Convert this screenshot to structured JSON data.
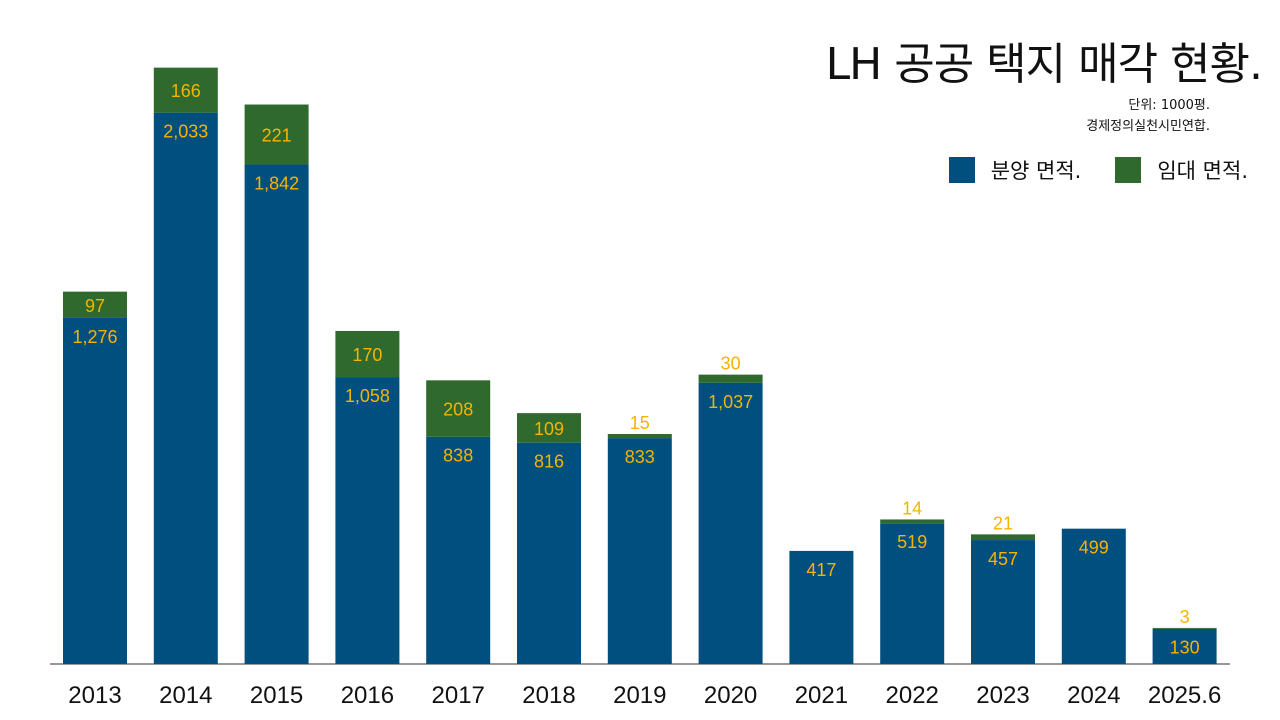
{
  "chart_data": {
    "type": "bar",
    "stacked": true,
    "title": "LH 공공 택지 매각 현황.",
    "unit_note": "단위: 1000평.",
    "source": "경제정의실천시민연합.",
    "categories": [
      "2013",
      "2014",
      "2015",
      "2016",
      "2017",
      "2018",
      "2019",
      "2020",
      "2021",
      "2022",
      "2023",
      "2024",
      "2025.6"
    ],
    "series": [
      {
        "name": "분양 면적.",
        "color": "#004f7f",
        "values": [
          1276,
          2033,
          1842,
          1058,
          838,
          816,
          833,
          1037,
          417,
          519,
          457,
          499,
          130
        ],
        "labels": [
          "1,276",
          "2,033",
          "1,842",
          "1,058",
          "838",
          "816",
          "833",
          "1,037",
          "417",
          "519",
          "457",
          "499",
          "130"
        ]
      },
      {
        "name": "임대 면적.",
        "color": "#2f692e",
        "values": [
          97,
          166,
          221,
          170,
          208,
          109,
          15,
          30,
          0,
          14,
          21,
          0,
          3
        ],
        "labels": [
          "97",
          "166",
          "221",
          "170",
          "208",
          "109",
          "15",
          "30",
          "",
          "14",
          "21",
          "",
          "3"
        ]
      }
    ],
    "label_color": "#f5b400",
    "ylim": [
      0,
      2200
    ],
    "grid": false,
    "legend": "top-right"
  }
}
